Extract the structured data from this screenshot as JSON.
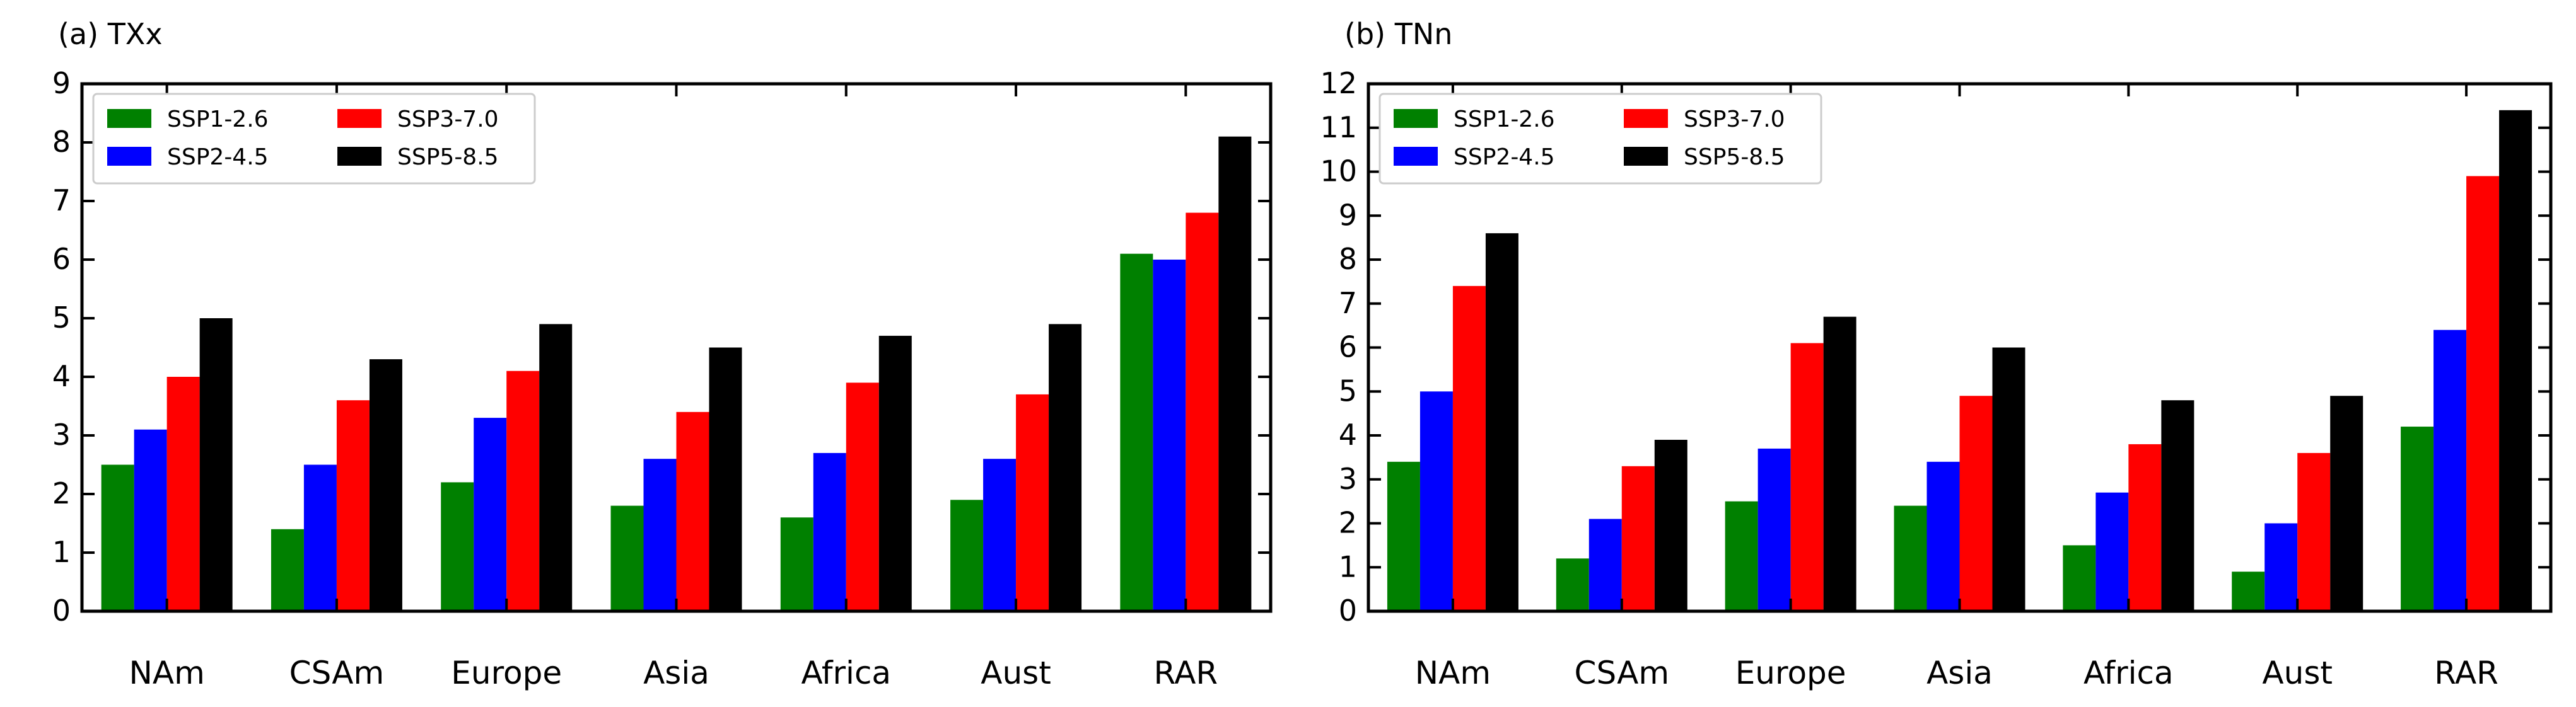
{
  "colors": {
    "SSP1-2.6": "#008000",
    "SSP2-4.5": "#0000ff",
    "SSP3-7.0": "#ff0000",
    "SSP5-8.5": "#000000"
  },
  "chart_data": [
    {
      "type": "bar",
      "title": "(a) TXx",
      "xlabel": "",
      "ylabel": "",
      "ylim": [
        0,
        9
      ],
      "yticks": [
        "0",
        "1",
        "2",
        "3",
        "4",
        "5",
        "6",
        "7",
        "8",
        "9"
      ],
      "categories": [
        "NAm",
        "CSAm",
        "Europe",
        "Asia",
        "Africa",
        "Aust",
        "RAR"
      ],
      "legend_position": "upper-left",
      "grid": false,
      "series": [
        {
          "name": "SSP1-2.6",
          "values": [
            2.5,
            1.4,
            2.2,
            1.8,
            1.6,
            1.9,
            6.1
          ]
        },
        {
          "name": "SSP2-4.5",
          "values": [
            3.1,
            2.5,
            3.3,
            2.6,
            2.7,
            2.6,
            6.0
          ]
        },
        {
          "name": "SSP3-7.0",
          "values": [
            4.0,
            3.6,
            4.1,
            3.4,
            3.9,
            3.7,
            6.8
          ]
        },
        {
          "name": "SSP5-8.5",
          "values": [
            5.0,
            4.3,
            4.9,
            4.5,
            4.7,
            4.9,
            8.1
          ]
        }
      ]
    },
    {
      "type": "bar",
      "title": "(b) TNn",
      "xlabel": "",
      "ylabel": "",
      "ylim": [
        0,
        12
      ],
      "yticks": [
        "0",
        "1",
        "2",
        "3",
        "4",
        "5",
        "6",
        "7",
        "8",
        "9",
        "10",
        "11",
        "12"
      ],
      "categories": [
        "NAm",
        "CSAm",
        "Europe",
        "Asia",
        "Africa",
        "Aust",
        "RAR"
      ],
      "legend_position": "upper-left",
      "grid": false,
      "series": [
        {
          "name": "SSP1-2.6",
          "values": [
            3.4,
            1.2,
            2.5,
            2.4,
            1.5,
            0.9,
            4.2
          ]
        },
        {
          "name": "SSP2-4.5",
          "values": [
            5.0,
            2.1,
            3.7,
            3.4,
            2.7,
            2.0,
            6.4
          ]
        },
        {
          "name": "SSP3-7.0",
          "values": [
            7.4,
            3.3,
            6.1,
            4.9,
            3.8,
            3.6,
            9.9
          ]
        },
        {
          "name": "SSP5-8.5",
          "values": [
            8.6,
            3.9,
            6.7,
            6.0,
            4.8,
            4.9,
            11.4
          ]
        }
      ]
    }
  ]
}
